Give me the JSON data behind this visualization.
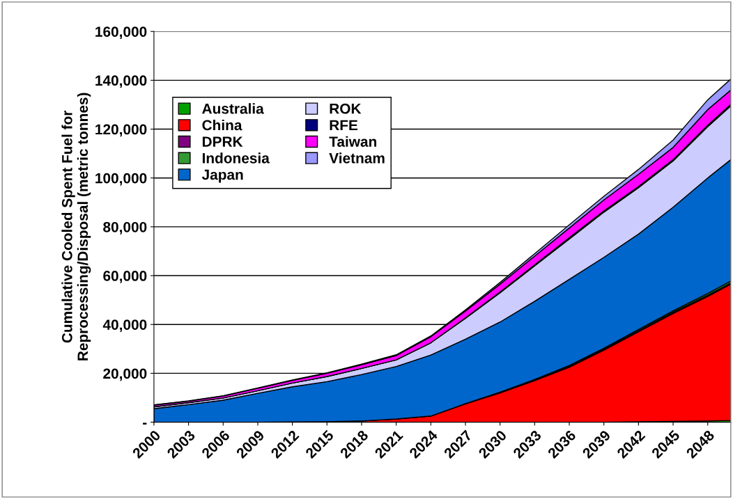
{
  "chart_data": {
    "type": "area",
    "stacked": true,
    "ylabel": "Cumulative Cooled Spent Fuel for\nReprocessing/Disposal (metric tonnes)",
    "x": [
      2000,
      2003,
      2006,
      2009,
      2012,
      2015,
      2018,
      2021,
      2024,
      2027,
      2030,
      2033,
      2036,
      2039,
      2042,
      2045,
      2048,
      2050
    ],
    "xlim": [
      2000,
      2050
    ],
    "xticks": [
      2000,
      2003,
      2006,
      2009,
      2012,
      2015,
      2018,
      2021,
      2024,
      2027,
      2030,
      2033,
      2036,
      2039,
      2042,
      2045,
      2048
    ],
    "ylim": [
      0,
      160000
    ],
    "yticks": [
      {
        "value": 0,
        "label": "-"
      },
      {
        "value": 20000,
        "label": "20,000"
      },
      {
        "value": 40000,
        "label": "40,000"
      },
      {
        "value": 60000,
        "label": "60,000"
      },
      {
        "value": 80000,
        "label": "80,000"
      },
      {
        "value": 100000,
        "label": "100,000"
      },
      {
        "value": 120000,
        "label": "120,000"
      },
      {
        "value": 140000,
        "label": "140,000"
      },
      {
        "value": 160000,
        "label": "160,000"
      }
    ],
    "grid": "y",
    "legend": "top left",
    "series": [
      {
        "name": "Australia",
        "color": "#00a000",
        "values": [
          0,
          0,
          0,
          0,
          0,
          0,
          0,
          0,
          0,
          0,
          0,
          0,
          0,
          0,
          200,
          300,
          500,
          700
        ]
      },
      {
        "name": "China",
        "color": "#ff0000",
        "values": [
          0,
          0,
          0,
          0,
          100,
          200,
          500,
          1300,
          2500,
          7500,
          12000,
          17000,
          22500,
          29500,
          36800,
          44200,
          51000,
          55800
        ]
      },
      {
        "name": "DPRK",
        "color": "#800080",
        "values": [
          0,
          0,
          0,
          0,
          0,
          0,
          0,
          0,
          0,
          100,
          200,
          300,
          400,
          400,
          500,
          500,
          500,
          500
        ]
      },
      {
        "name": "Indonesia",
        "color": "#339933",
        "values": [
          0,
          0,
          0,
          0,
          0,
          0,
          0,
          0,
          0,
          0,
          100,
          200,
          300,
          400,
          500,
          600,
          700,
          800
        ]
      },
      {
        "name": "Japan",
        "color": "#0066cc",
        "values": [
          5500,
          7200,
          9000,
          11800,
          14400,
          16400,
          19000,
          21500,
          25000,
          26400,
          28700,
          32000,
          35300,
          37200,
          39000,
          42400,
          47300,
          49700
        ]
      },
      {
        "name": "ROK",
        "color": "#ccccff",
        "values": [
          800,
          800,
          900,
          1100,
          1500,
          2100,
          2500,
          2700,
          5000,
          8500,
          12000,
          14500,
          16500,
          18500,
          19000,
          19000,
          21000,
          22000
        ]
      },
      {
        "name": "RFE",
        "color": "#000080",
        "values": [
          0,
          0,
          0,
          0,
          0,
          0,
          0,
          0,
          0,
          200,
          300,
          400,
          500,
          500,
          500,
          500,
          600,
          600
        ]
      },
      {
        "name": "Taiwan",
        "color": "#ff00ff",
        "values": [
          700,
          600,
          800,
          1000,
          1100,
          1300,
          1500,
          1800,
          2500,
          2800,
          3200,
          3600,
          4000,
          4500,
          5000,
          5000,
          6400,
          5900
        ]
      },
      {
        "name": "Vietnam",
        "color": "#9999ff",
        "values": [
          100,
          100,
          100,
          100,
          200,
          200,
          300,
          300,
          300,
          500,
          700,
          1000,
          1300,
          1500,
          2000,
          3000,
          4000,
          4500
        ]
      }
    ]
  }
}
